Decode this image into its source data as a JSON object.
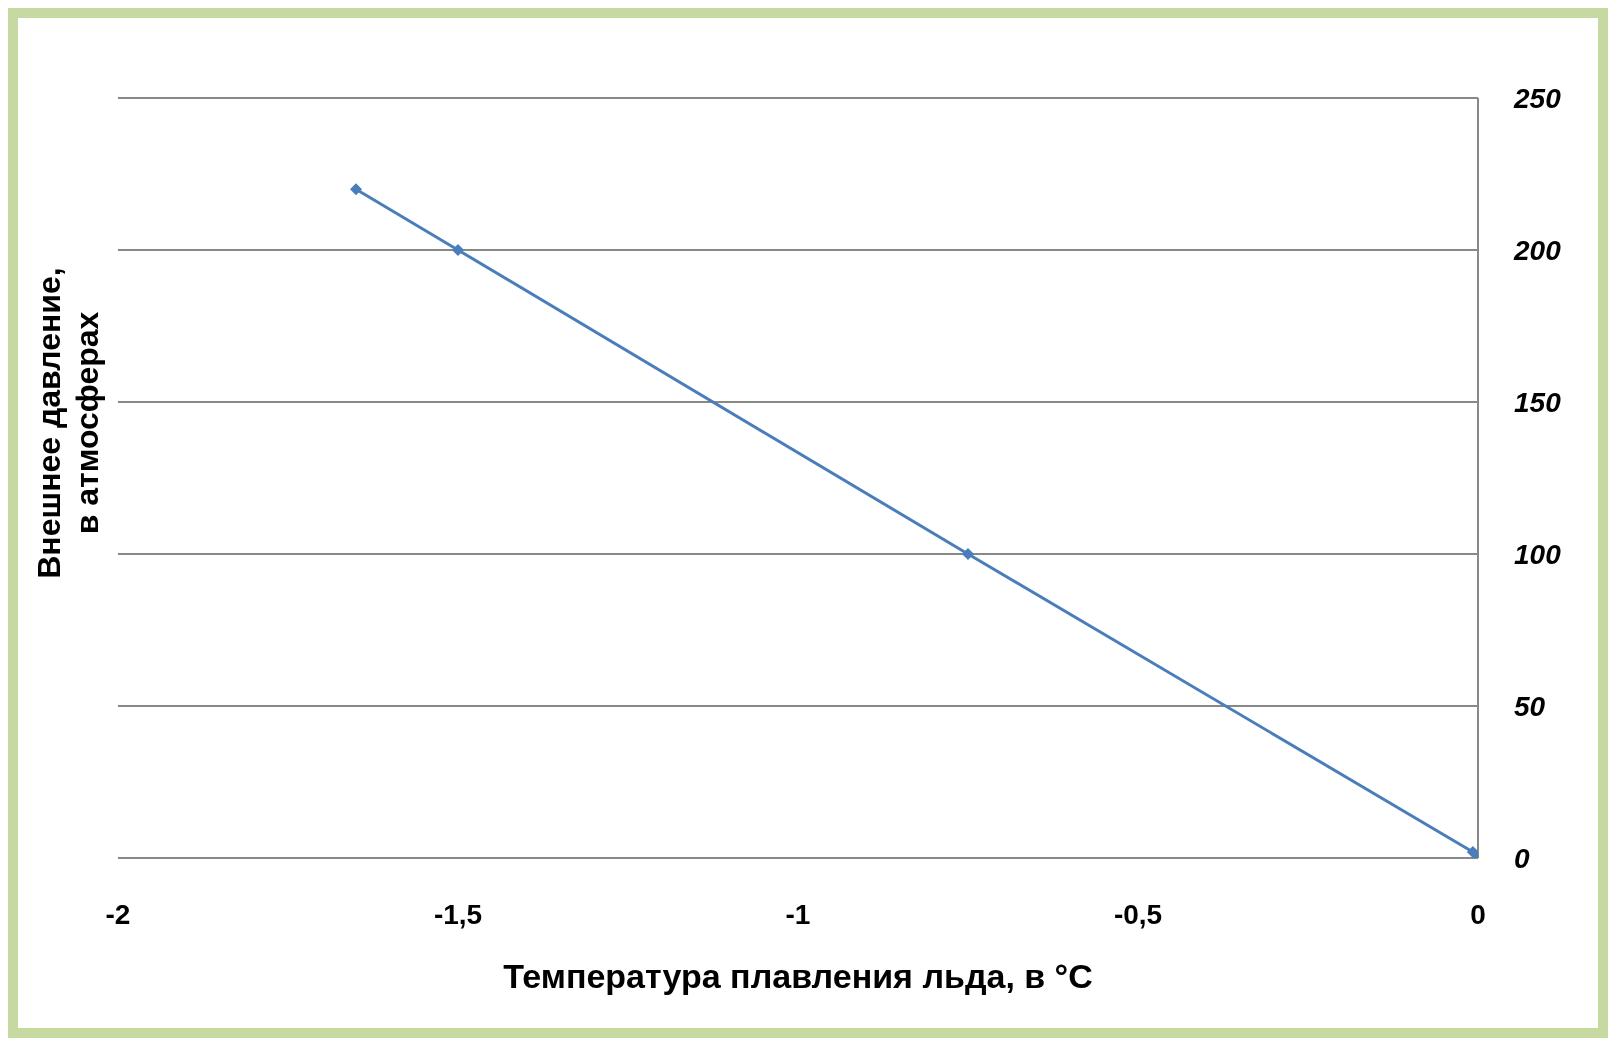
{
  "chart_data": {
    "type": "line",
    "xlabel": "Температура плавления льда, в °C",
    "ylabel": "Внешнее давление,\nв атмосферах",
    "x": [
      -1.65,
      -1.5,
      -0.75,
      -0.0075,
      0
    ],
    "series": [
      {
        "color": "#4a7ebb",
        "values": [
          220,
          200,
          100,
          2,
          0
        ]
      }
    ],
    "xlim": [
      -2,
      0
    ],
    "xticks": [
      -2,
      {
        "value": -1.5,
        "label": "-1,5"
      },
      -1,
      {
        "value": -0.5,
        "label": "-0,5"
      },
      0
    ],
    "ylim": [
      0,
      250
    ],
    "yticks": [
      0,
      50,
      100,
      150,
      200,
      250
    ],
    "grid": "y",
    "marker": "diamond",
    "line_style": "solid",
    "legend": false
  }
}
